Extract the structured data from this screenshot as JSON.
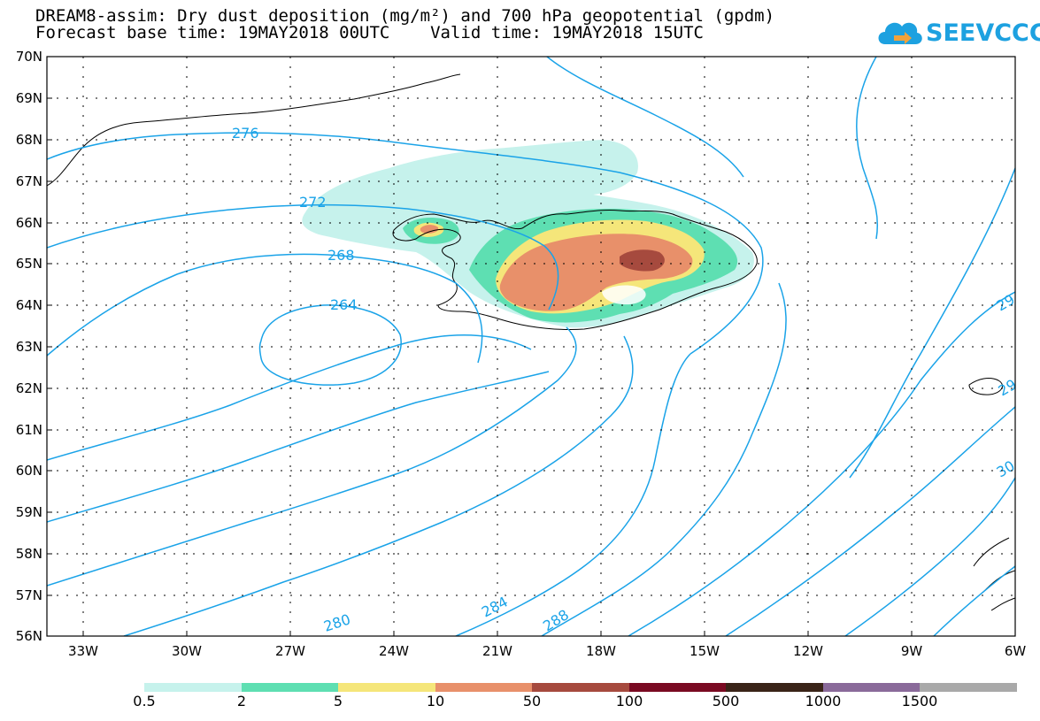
{
  "title": {
    "line1": "DREAM8-assim: Dry dust deposition (mg/m²) and 700 hPa geopotential (gpdm)",
    "line2": "Forecast base time: 19MAY2018 00UTC    Valid time: 19MAY2018 15UTC"
  },
  "logo": {
    "text": "SEEVCCC",
    "icon": "cloud-icon"
  },
  "axes": {
    "lat_labels": [
      "70N",
      "69N",
      "68N",
      "67N",
      "66N",
      "65N",
      "64N",
      "63N",
      "62N",
      "61N",
      "60N",
      "59N",
      "58N",
      "57N",
      "56N"
    ],
    "lon_labels": [
      "33W",
      "30W",
      "27W",
      "24W",
      "21W",
      "18W",
      "15W",
      "12W",
      "9W",
      "6W"
    ],
    "lat_range": [
      56,
      70
    ],
    "lon_range": [
      -34.5,
      -6
    ]
  },
  "contours": {
    "color": "#1aa3e8",
    "labels": [
      "276",
      "272",
      "268",
      "264",
      "280",
      "284",
      "288",
      "29",
      "29",
      "30"
    ]
  },
  "colorbar": {
    "labels": [
      "0.5",
      "2",
      "5",
      "10",
      "50",
      "100",
      "500",
      "1000",
      "1500"
    ],
    "colors": [
      "#c6f2ec",
      "#5edfb2",
      "#f5e67a",
      "#e8906a",
      "#a64a3e",
      "#7a0a22",
      "#3a2418",
      "#8a6a9a",
      "#a9a9a9"
    ]
  }
}
